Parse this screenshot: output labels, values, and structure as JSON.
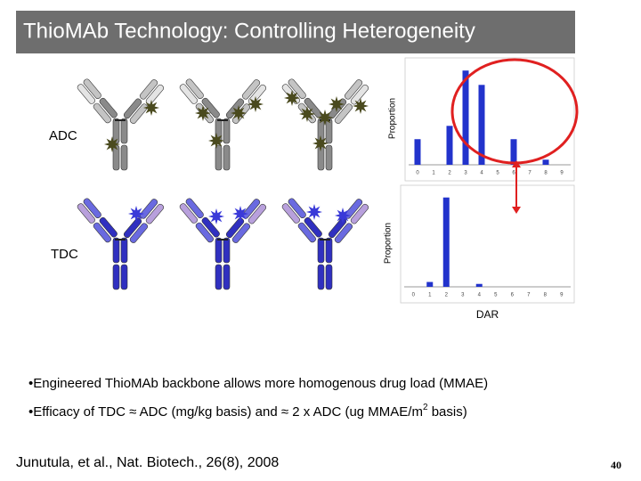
{
  "header": {
    "title": "ThioMAb Technology: Controlling Heterogeneity"
  },
  "labels": {
    "adc": "ADC",
    "tdc": "TDC"
  },
  "charts": [
    {
      "type": "bar",
      "ylabel": "Proportion",
      "categories": [
        "0",
        "1",
        "2",
        "3",
        "4",
        "5",
        "6",
        "7",
        "8",
        "9"
      ],
      "values": [
        0.25,
        0,
        0.38,
        0.92,
        0.78,
        0,
        0.25,
        0,
        0.05,
        0
      ],
      "ylim": [
        0,
        1
      ],
      "color": "#2233cc"
    },
    {
      "type": "bar",
      "ylabel": "Proportion",
      "categories": [
        "0",
        "1",
        "2",
        "3",
        "4",
        "5",
        "6",
        "7",
        "8",
        "9"
      ],
      "values": [
        0,
        0.05,
        0.92,
        0,
        0.03,
        0,
        0,
        0,
        0,
        0
      ],
      "ylim": [
        0,
        1
      ],
      "color": "#2233cc",
      "xlabel": "DAR"
    }
  ],
  "bullets": [
    "•Engineered ThioMAb backbone allows more homogenous drug load (MMAE)",
    {
      "before": "•Efficacy of TDC ≈ ADC (mg/kg basis) and ≈ 2 x ADC (ug MMAE/m",
      "sup": "2",
      "after": " basis)"
    }
  ],
  "citation": "Junutula, et al., Nat. Biotech., 26(8), 2008",
  "page_number": "40"
}
